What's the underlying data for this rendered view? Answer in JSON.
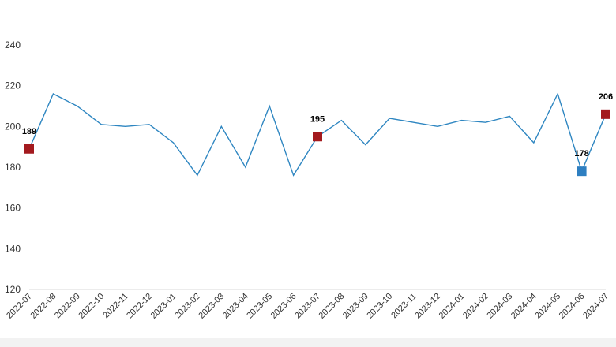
{
  "chart_data": {
    "type": "line",
    "title": "",
    "xlabel": "",
    "ylabel": "",
    "ylim": [
      120,
      240
    ],
    "yticks": [
      120,
      140,
      160,
      180,
      200,
      220,
      240
    ],
    "grid": false,
    "categories": [
      "2022-07",
      "2022-08",
      "2022-09",
      "2022-10",
      "2022-11",
      "2022-12",
      "2023-01",
      "2023-02",
      "2023-03",
      "2023-04",
      "2023-05",
      "2023-06",
      "2023-07",
      "2023-08",
      "2023-09",
      "2023-10",
      "2023-11",
      "2023-12",
      "2024-01",
      "2024-02",
      "2024-03",
      "2024-04",
      "2024-05",
      "2024-06",
      "2024-07"
    ],
    "series": [
      {
        "values": [
          189,
          216,
          210,
          201,
          200,
          201,
          192,
          176,
          200,
          180,
          210,
          176,
          195,
          203,
          191,
          204,
          202,
          200,
          203,
          202,
          205,
          192,
          216,
          178,
          206
        ],
        "color": "#2e86c1"
      }
    ],
    "highlights": [
      {
        "index": 0,
        "value": 189,
        "label": "189",
        "color": "#a31a1e"
      },
      {
        "index": 12,
        "value": 195,
        "label": "195",
        "color": "#a31a1e"
      },
      {
        "index": 23,
        "value": 178,
        "label": "178",
        "color": "#2e7fc1"
      },
      {
        "index": 24,
        "value": 206,
        "label": "206",
        "color": "#a31a1e"
      }
    ],
    "axis_color": "#d9d9d9"
  }
}
